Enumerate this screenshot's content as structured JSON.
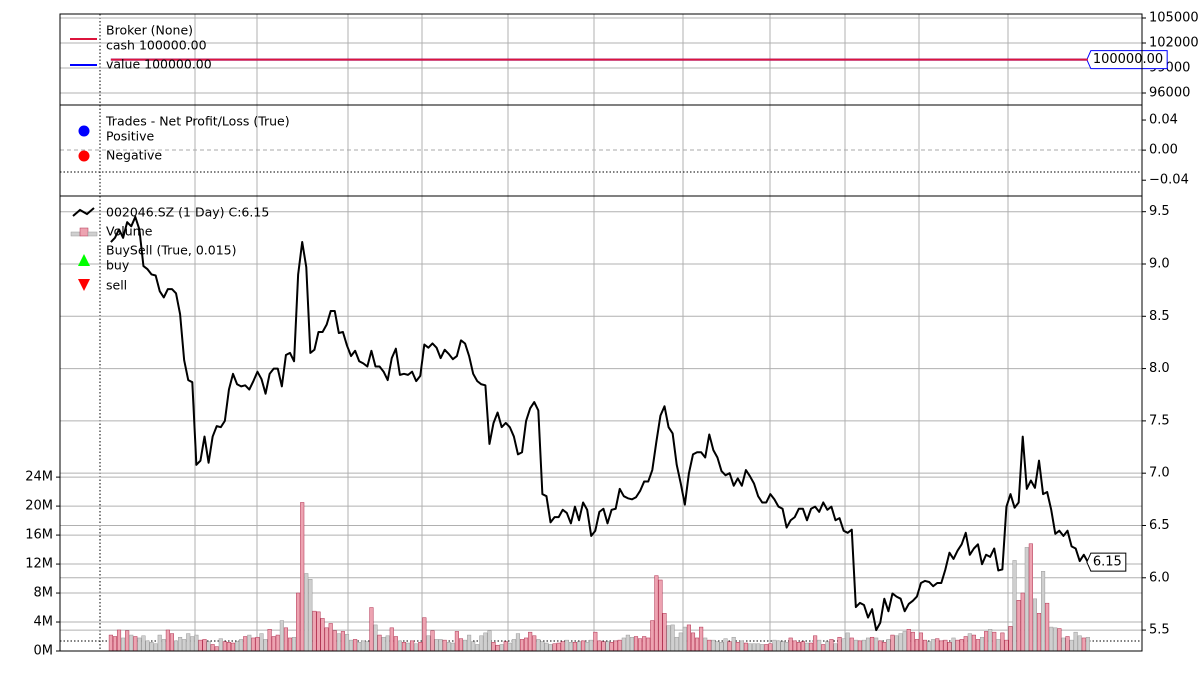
{
  "chart_data": [
    {
      "type": "line",
      "title": "Broker (None)",
      "x": [
        0,
        240
      ],
      "xlim": [
        -12.5,
        253.3
      ],
      "series": [
        {
          "name": "cash 100000.00",
          "color": "#dc143c",
          "values": [
            100000,
            100000
          ]
        },
        {
          "name": "value 100000.00",
          "color": "#0000ff",
          "values": [
            100000,
            100000
          ],
          "value_labels": [
            null,
            "100000.00"
          ]
        }
      ],
      "ylim": [
        94560,
        105480
      ],
      "yticks": [
        96000,
        99000,
        102000,
        105000
      ],
      "grid": true
    },
    {
      "type": "scatter",
      "title": "Trades - Net Profit/Loss (True)",
      "xlim": [
        -12.5,
        253.3
      ],
      "series": [
        {
          "name": "Positive",
          "color": "#0000ff",
          "values": []
        },
        {
          "name": "Negative",
          "color": "#ff0000",
          "values": []
        }
      ],
      "ylim": [
        -0.061,
        0.06
      ],
      "yticks": [
        {
          "value": 0.04,
          "label": "0.04"
        },
        {
          "value": 0,
          "label": "0.00"
        },
        {
          "value": -0.04,
          "label": "−0.04"
        }
      ],
      "grid": false
    },
    {
      "type": "line",
      "xlim": [
        -12.5,
        253.3
      ],
      "annotations": [
        "BuySell (True, 0.015)"
      ],
      "series": [
        {
          "name": "002046.SZ (1 Day) C:6.15",
          "color": "#000000",
          "tag_last": true,
          "values": [
            9.21,
            9.25,
            9.33,
            9.25,
            9.4,
            9.36,
            9.45,
            9.33,
            8.98,
            8.95,
            8.9,
            8.89,
            8.74,
            8.68,
            8.76,
            8.76,
            8.72,
            8.52,
            8.08,
            7.89,
            7.87,
            7.08,
            7.12,
            7.35,
            7.1,
            7.35,
            7.45,
            7.44,
            7.5,
            7.8,
            7.95,
            7.85,
            7.83,
            7.84,
            7.8,
            7.88,
            7.97,
            7.9,
            7.76,
            7.95,
            8.0,
            8.0,
            7.83,
            8.13,
            8.15,
            8.07,
            8.9,
            9.21,
            8.97,
            8.15,
            8.18,
            8.35,
            8.35,
            8.42,
            8.55,
            8.55,
            8.34,
            8.35,
            8.22,
            8.12,
            8.17,
            8.07,
            8.05,
            8.02,
            8.17,
            8.02,
            8.02,
            7.97,
            7.89,
            8.1,
            8.19,
            7.94,
            7.95,
            7.94,
            7.97,
            7.88,
            7.93,
            8.23,
            8.2,
            8.24,
            8.2,
            8.1,
            8.18,
            8.14,
            8.09,
            8.12,
            8.27,
            8.24,
            8.12,
            7.95,
            7.88,
            7.85,
            7.84,
            7.28,
            7.48,
            7.58,
            7.44,
            7.48,
            7.44,
            7.35,
            7.18,
            7.2,
            7.5,
            7.62,
            7.68,
            7.6,
            6.8,
            6.78,
            6.53,
            6.58,
            6.58,
            6.65,
            6.62,
            6.52,
            6.68,
            6.55,
            6.72,
            6.65,
            6.4,
            6.45,
            6.63,
            6.66,
            6.52,
            6.65,
            6.66,
            6.85,
            6.78,
            6.76,
            6.75,
            6.77,
            6.83,
            6.92,
            6.92,
            7.03,
            7.3,
            7.55,
            7.64,
            7.44,
            7.38,
            7.08,
            6.9,
            6.7,
            7.0,
            7.18,
            7.2,
            7.2,
            7.15,
            7.37,
            7.22,
            7.15,
            7.02,
            6.98,
            7.0,
            6.88,
            6.95,
            6.88,
            7.03,
            6.97,
            6.9,
            6.78,
            6.72,
            6.72,
            6.8,
            6.75,
            6.68,
            6.66,
            6.48,
            6.55,
            6.58,
            6.66,
            6.66,
            6.55,
            6.66,
            6.68,
            6.63,
            6.72,
            6.65,
            6.68,
            6.55,
            6.57,
            6.45,
            6.43,
            6.46,
            5.72,
            5.76,
            5.74,
            5.62,
            5.7,
            5.5,
            5.57,
            5.8,
            5.68,
            5.85,
            5.82,
            5.8,
            5.68,
            5.75,
            5.78,
            5.82,
            5.95,
            5.97,
            5.96,
            5.92,
            5.95,
            5.95,
            6.08,
            6.24,
            6.18,
            6.26,
            6.32,
            6.43,
            6.22,
            6.28,
            6.32,
            6.13,
            6.22,
            6.2,
            6.28,
            6.07,
            6.08,
            6.68,
            6.8,
            6.67,
            6.72,
            7.35,
            6.85,
            6.93,
            6.86,
            7.12,
            6.8,
            6.82,
            6.65,
            6.42,
            6.45,
            6.4,
            6.45,
            6.3,
            6.28,
            6.16,
            6.22,
            6.15
          ]
        },
        {
          "name": "Volume",
          "type": "bar",
          "axis": "y2",
          "color": "#eda3b1",
          "down_color": "#cfcfcf",
          "values": [
            2.2,
            2.0,
            2.9,
            1.8,
            2.8,
            2.2,
            2.0,
            1.8,
            2.1,
            1.4,
            1.2,
            1.0,
            2.2,
            1.6,
            2.9,
            2.4,
            1.4,
            1.9,
            1.6,
            2.4,
            2.0,
            2.2,
            1.5,
            1.6,
            1.3,
            0.9,
            0.6,
            1.7,
            1.3,
            1.2,
            1.1,
            1.3,
            1.6,
            2.0,
            2.2,
            1.8,
            1.9,
            2.4,
            1.6,
            3.0,
            2.0,
            2.2,
            4.2,
            3.2,
            1.8,
            1.9,
            8.0,
            20.5,
            10.7,
            9.9,
            5.5,
            5.4,
            4.5,
            3.2,
            3.8,
            2.8,
            2.4,
            2.7,
            2.3,
            1.5,
            1.6,
            1.2,
            1.4,
            1.3,
            6.0,
            3.6,
            2.2,
            1.9,
            2.1,
            3.2,
            2.0,
            1.4,
            1.2,
            1.1,
            1.4,
            1.0,
            1.2,
            4.6,
            2.1,
            2.8,
            1.6,
            1.6,
            1.5,
            1.2,
            1.1,
            2.7,
            1.7,
            1.5,
            2.2,
            1.3,
            0.9,
            2.1,
            2.5,
            2.8,
            1.2,
            0.8,
            0.9,
            1.3,
            1.1,
            1.6,
            2.4,
            1.6,
            1.8,
            2.6,
            2.1,
            1.6,
            1.3,
            1.1,
            0.9,
            1.0,
            1.1,
            1.3,
            1.5,
            1.2,
            1.2,
            1.3,
            1.4,
            1.2,
            1.5,
            2.6,
            1.4,
            1.3,
            1.3,
            1.2,
            1.4,
            1.5,
            1.8,
            2.2,
            1.9,
            2.0,
            1.7,
            2.0,
            1.8,
            4.2,
            10.4,
            9.8,
            5.2,
            3.5,
            3.6,
            1.9,
            2.5,
            3.3,
            3.6,
            2.5,
            1.8,
            3.3,
            1.8,
            1.5,
            1.5,
            1.3,
            1.2,
            1.7,
            1.3,
            1.9,
            1.2,
            1.4,
            1.1,
            1.0,
            1.0,
            1.0,
            0.9,
            0.9,
            1.0,
            1.5,
            1.4,
            1.3,
            1.2,
            1.8,
            1.4,
            1.2,
            1.3,
            1.1,
            1.1,
            2.1,
            1.5,
            0.9,
            1.3,
            1.6,
            1.0,
            1.9,
            1.7,
            2.5,
            1.8,
            1.5,
            1.4,
            1.5,
            1.8,
            1.9,
            1.8,
            1.4,
            1.2,
            1.6,
            2.2,
            2.1,
            2.4,
            2.7,
            3.0,
            2.6,
            1.6,
            2.5,
            1.5,
            1.3,
            1.6,
            1.7,
            1.4,
            1.5,
            1.2,
            1.8,
            1.5,
            1.6,
            2.0,
            2.4,
            2.2,
            1.6,
            1.9,
            2.7,
            3.0,
            2.6,
            1.6,
            2.5,
            1.5,
            3.4,
            12.5,
            7.0,
            8.0,
            14.3,
            14.8,
            7.2,
            5.2,
            11.0,
            6.6,
            3.3,
            3.2,
            3.1,
            1.8,
            2.0,
            1.5,
            2.6,
            2.1,
            1.8,
            1.9
          ]
        },
        {
          "name": "buy",
          "marker": "^",
          "color": "#00ff00",
          "values": []
        },
        {
          "name": "sell",
          "marker": "v",
          "color": "#ff0000",
          "values": []
        }
      ],
      "ylim": [
        5.3,
        9.65
      ],
      "yticks": [
        5.5,
        {
          "value": 6,
          "label": "6.0"
        },
        6.5,
        {
          "value": 7,
          "label": "7.0"
        },
        7.5,
        {
          "value": 8,
          "label": "8.0"
        },
        8.5,
        {
          "value": 9,
          "label": "9.0"
        },
        9.5
      ],
      "y2lim": [
        0,
        62.8
      ],
      "y2ticks": [
        {
          "value": 0,
          "label": "0M"
        },
        {
          "value": 4,
          "label": "4M"
        },
        {
          "value": 8,
          "label": "8M"
        },
        {
          "value": 12,
          "label": "12M"
        },
        {
          "value": 16,
          "label": "16M"
        },
        {
          "value": 20,
          "label": "20M"
        },
        {
          "value": 24,
          "label": "24M"
        }
      ],
      "grid": true
    }
  ]
}
